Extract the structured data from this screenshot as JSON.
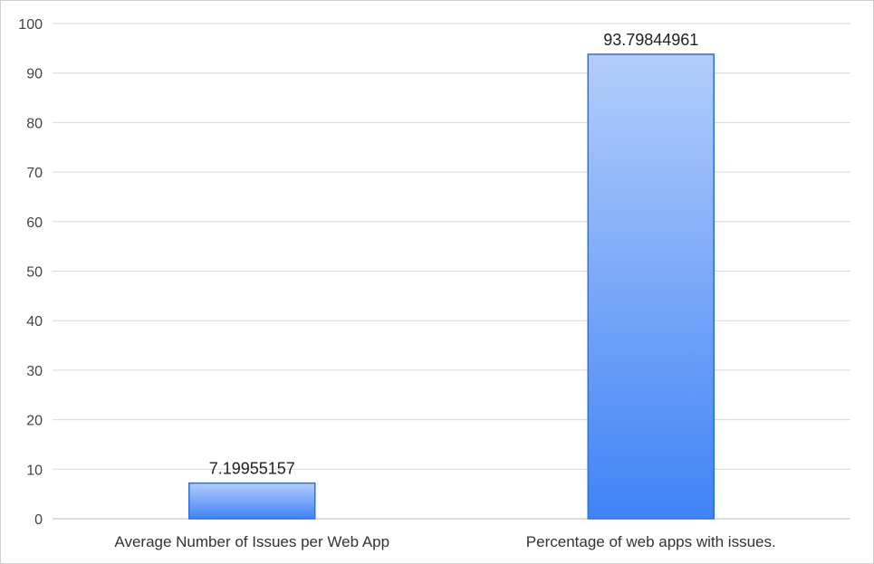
{
  "chart_data": {
    "type": "bar",
    "categories": [
      "Average Number of Issues per Web App",
      "Percentage of web apps with issues."
    ],
    "values": [
      7.19955157,
      93.79844961
    ],
    "data_labels": [
      "7.19955157",
      "93.79844961"
    ],
    "y_ticks": [
      "0",
      "10",
      "20",
      "30",
      "40",
      "50",
      "60",
      "70",
      "80",
      "90",
      "100"
    ],
    "ylim": [
      0,
      100
    ],
    "grid": true,
    "legend": "none",
    "title": "",
    "xlabel": "",
    "ylabel": "",
    "colors": {
      "bar_top": "#b3cdfb",
      "bar_bottom": "#3f83f5",
      "bar_border": "#2c6fe0",
      "grid": "#d9d9d9",
      "axis": "#bdbdbd"
    }
  }
}
